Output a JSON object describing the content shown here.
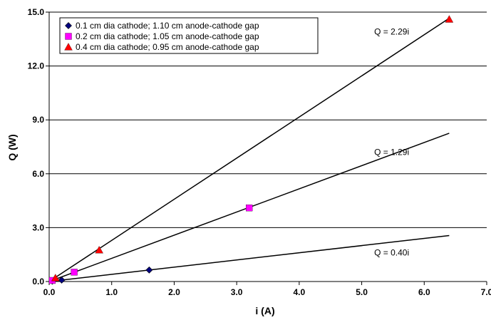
{
  "chart_data": {
    "type": "scatter",
    "xlabel": "i (A)",
    "ylabel": "Q (W)",
    "xlim": [
      0,
      7
    ],
    "ylim": [
      0,
      15
    ],
    "xticks": [
      "0.0",
      "1.0",
      "2.0",
      "3.0",
      "4.0",
      "5.0",
      "6.0",
      "7.0"
    ],
    "yticks": [
      "0.0",
      "3.0",
      "6.0",
      "9.0",
      "12.0",
      "15.0"
    ],
    "grid": "horizontal",
    "legend_position": "top-left",
    "series": [
      {
        "name": "0.1 cm dia cathode; 1.10 cm anode-cathode gap",
        "marker": "diamond",
        "color": "#000080",
        "x": [
          0.05,
          0.2,
          1.6
        ],
        "y": [
          0.02,
          0.08,
          0.64
        ]
      },
      {
        "name": "0.2 cm dia cathode; 1.05 cm anode-cathode gap",
        "marker": "square",
        "color": "#ff00ff",
        "x": [
          0.05,
          0.4,
          3.2
        ],
        "y": [
          0.06,
          0.52,
          4.1
        ]
      },
      {
        "name": "0.4 cm dia cathode; 0.95 cm anode-cathode gap",
        "marker": "triangle",
        "color": "#ff0000",
        "x": [
          0.1,
          0.8,
          6.4
        ],
        "y": [
          0.2,
          1.75,
          14.6
        ]
      }
    ],
    "fit_lines": [
      {
        "slope": 0.4,
        "x_end": 6.4,
        "label": "Q = 0.40i",
        "label_x": 5.2,
        "label_y": 1.45
      },
      {
        "slope": 1.29,
        "x_end": 6.4,
        "label": "Q = 1.29i",
        "label_x": 5.2,
        "label_y": 7.05
      },
      {
        "slope": 2.29,
        "x_end": 6.4,
        "label": "Q = 2.29i",
        "label_x": 5.2,
        "label_y": 13.75
      }
    ]
  }
}
